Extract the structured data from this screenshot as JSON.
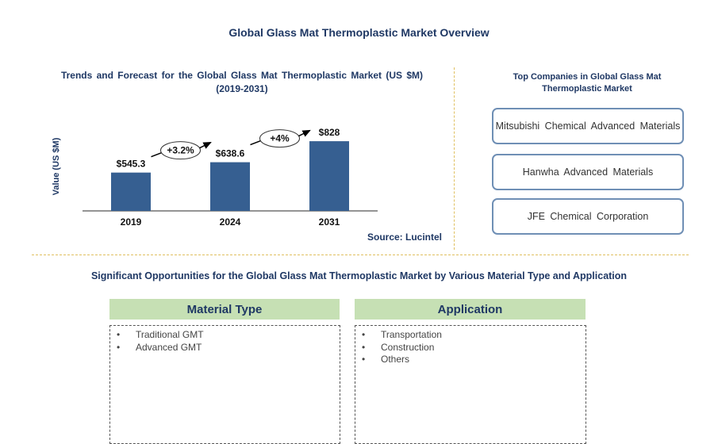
{
  "title": "Global Glass Mat Thermoplastic Market Overview",
  "chart_data": {
    "type": "bar",
    "title": "Trends and Forecast for the Global Glass Mat Thermoplastic Market (US $M) (2019-2031)",
    "title_line1": "Trends and Forecast for the Global Glass Mat Thermoplastic Market (US $M)",
    "title_line2": "(2019-2031)",
    "ylabel": "Value (US $M)",
    "categories": [
      "2019",
      "2024",
      "2031"
    ],
    "values": [
      545.3,
      638.6,
      828
    ],
    "value_labels": [
      "$545.3",
      "$638.6",
      "$828"
    ],
    "growth_labels": [
      "+3.2%",
      "+4%"
    ],
    "ylim": [
      200,
      850
    ],
    "bar_color": "#365f91",
    "source": "Source: Lucintel"
  },
  "top_companies": {
    "title": "Top Companies  in Global Glass Mat Thermoplastic  Market",
    "items": [
      "Mitsubishi Chemical Advanced Materials",
      "Hanwha Advanced Materials",
      "JFE Chemical Corporation"
    ]
  },
  "opportunities": {
    "title": "Significant Opportunities for the Global Glass Mat Thermoplastic Market by Various Material Type  and Application",
    "segments": [
      {
        "header": "Material Type",
        "items": [
          "Traditional GMT",
          "Advanced GMT"
        ]
      },
      {
        "header": "Application",
        "items": [
          "Transportation",
          "Construction",
          "Others"
        ]
      }
    ]
  }
}
